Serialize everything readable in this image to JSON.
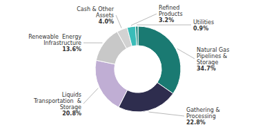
{
  "chart_data": {
    "type": "donut",
    "categories": [
      "Natural Gas\nPipelines &\nStorage",
      "Gathering &\nProcessing",
      "Liquids\nTransportation  &\nStorage",
      "Renewable  Energy\nInfrastructure",
      "Cash & Other\nAssets",
      "Refined\nProducts",
      "Utilities"
    ],
    "values": [
      34.7,
      22.8,
      20.8,
      13.6,
      4.0,
      3.2,
      0.9
    ],
    "value_labels": [
      "34.7%",
      "22.8%",
      "20.8%",
      "13.6%",
      "4.0%",
      "3.2%",
      "0.9%"
    ],
    "data_labels": true,
    "colors": [
      "#1a7a72",
      "#2e2d4e",
      "#c0aed4",
      "#c8c8c8",
      "#d2d2d2",
      "#3abcb8",
      "#1a8a80"
    ]
  }
}
